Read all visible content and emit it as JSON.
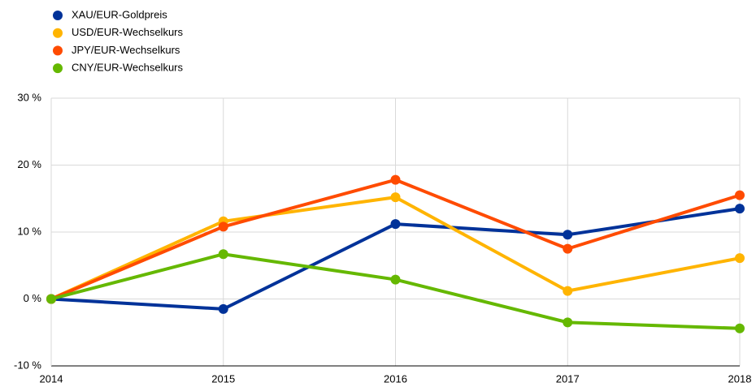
{
  "chart_data": {
    "type": "line",
    "categories": [
      "2014",
      "2015",
      "2016",
      "2017",
      "2018"
    ],
    "series": [
      {
        "name": "XAU/EUR-Goldpreis",
        "color": "#003299",
        "values": [
          0,
          -1.5,
          11.2,
          9.6,
          13.5
        ]
      },
      {
        "name": "USD/EUR-Wechselkurs",
        "color": "#ffb400",
        "values": [
          0,
          11.6,
          15.2,
          1.2,
          6.1
        ]
      },
      {
        "name": "JPY/EUR-Wechselkurs",
        "color": "#ff4b00",
        "values": [
          0,
          10.8,
          17.8,
          7.5,
          15.5
        ]
      },
      {
        "name": "CNY/EUR-Wechselkurs",
        "color": "#65b800",
        "values": [
          0,
          6.7,
          2.9,
          -3.5,
          -4.4
        ]
      }
    ],
    "ylim": [
      -10,
      30
    ],
    "yticks": [
      {
        "value": -10,
        "label": "-10 %"
      },
      {
        "value": 0,
        "label": "0 %"
      },
      {
        "value": 10,
        "label": "10 %"
      },
      {
        "value": 20,
        "label": "20 %"
      },
      {
        "value": 30,
        "label": "30 %"
      }
    ],
    "grid": true,
    "legend": "top-left"
  }
}
